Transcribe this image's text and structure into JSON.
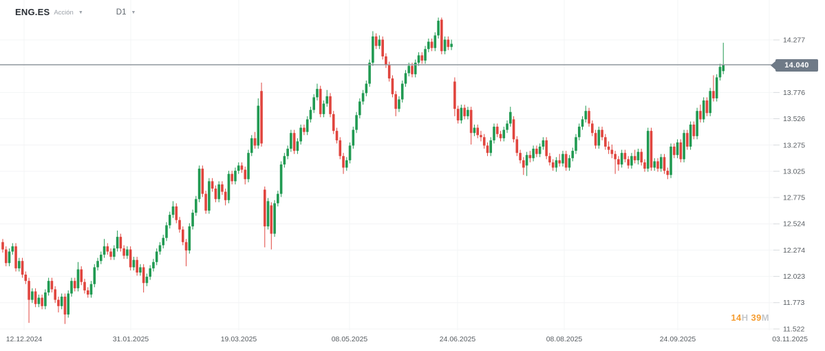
{
  "header": {
    "symbol": "ENG.ES",
    "instrument_type": "Acción",
    "timeframe": "D1"
  },
  "price_axis": {
    "current_price": "14.040",
    "labels": [
      "14.277",
      "13.776",
      "13.526",
      "13.275",
      "13.025",
      "12.775",
      "12.524",
      "12.274",
      "12.023",
      "11.773",
      "11.522"
    ]
  },
  "date_axis": {
    "ticks": [
      {
        "label": "12.12.2024",
        "x": 35
      },
      {
        "label": "31.01.2025",
        "x": 190
      },
      {
        "label": "19.03.2025",
        "x": 347
      },
      {
        "label": "08.05.2025",
        "x": 508
      },
      {
        "label": "24.06.2025",
        "x": 665
      },
      {
        "label": "08.08.2025",
        "x": 820
      },
      {
        "label": "24.09.2025",
        "x": 985
      },
      {
        "label": "03.11.2025",
        "x": 1118
      }
    ]
  },
  "countdown": {
    "hours": "14",
    "hours_unit": "H",
    "minutes": "39",
    "minutes_unit": "M"
  },
  "colors": {
    "up": "#219a52",
    "down": "#e0453e",
    "grid": "#f3f4f6",
    "grid_tick": "#d8dbde",
    "price_line": "#8f969d",
    "badge": "#6f7a87",
    "axis_text": "#585d62",
    "countdown_number": "#f59d31",
    "countdown_unit": "#c3c7cb",
    "background": "#ffffff"
  },
  "chart_data": {
    "type": "candlestick",
    "title": "ENG.ES Acción D1",
    "timeframe": "D1",
    "current_price": 14.04,
    "ylim": [
      11.522,
      14.49
    ],
    "y_axis_ticks": [
      14.277,
      13.776,
      13.526,
      13.275,
      13.025,
      12.775,
      12.524,
      12.274,
      12.023,
      11.773,
      11.522
    ],
    "x_axis_dates": [
      "12.12.2024",
      "31.01.2025",
      "19.03.2025",
      "08.05.2025",
      "24.06.2025",
      "08.08.2025",
      "24.09.2025",
      "03.11.2025"
    ],
    "grid": true,
    "legend": false,
    "candles": [
      [
        12.35,
        12.38,
        12.25,
        12.28
      ],
      [
        12.28,
        12.31,
        12.12,
        12.15
      ],
      [
        12.15,
        12.29,
        12.12,
        12.26
      ],
      [
        12.26,
        12.34,
        12.23,
        12.31
      ],
      [
        12.31,
        12.34,
        12.07,
        12.1
      ],
      [
        12.1,
        12.2,
        12.07,
        12.17
      ],
      [
        12.17,
        12.2,
        12.01,
        12.04
      ],
      [
        12.04,
        12.07,
        11.95,
        11.98
      ],
      [
        11.98,
        12.01,
        11.58,
        11.8
      ],
      [
        11.8,
        11.91,
        11.77,
        11.88
      ],
      [
        11.88,
        11.91,
        11.73,
        11.76
      ],
      [
        11.76,
        11.85,
        11.73,
        11.82
      ],
      [
        11.82,
        11.85,
        11.71,
        11.74
      ],
      [
        11.74,
        11.9,
        11.71,
        11.87
      ],
      [
        11.87,
        12.01,
        11.84,
        11.98
      ],
      [
        11.98,
        12.01,
        11.87,
        11.9
      ],
      [
        11.9,
        11.93,
        11.77,
        11.8
      ],
      [
        11.8,
        11.83,
        11.68,
        11.74
      ],
      [
        11.74,
        11.86,
        11.71,
        11.83
      ],
      [
        11.83,
        11.86,
        11.57,
        11.66
      ],
      [
        11.66,
        11.89,
        11.63,
        11.86
      ],
      [
        11.86,
        12.01,
        11.83,
        11.98
      ],
      [
        11.98,
        12.01,
        11.88,
        11.91
      ],
      [
        11.91,
        12.16,
        11.88,
        12.09
      ],
      [
        12.09,
        12.12,
        11.94,
        11.97
      ],
      [
        11.97,
        12.0,
        11.86,
        11.89
      ],
      [
        11.89,
        11.92,
        11.82,
        11.85
      ],
      [
        11.85,
        11.98,
        11.82,
        11.95
      ],
      [
        11.95,
        12.14,
        11.92,
        12.11
      ],
      [
        12.11,
        12.2,
        12.08,
        12.17
      ],
      [
        12.17,
        12.26,
        12.14,
        12.23
      ],
      [
        12.23,
        12.38,
        12.2,
        12.31
      ],
      [
        12.31,
        12.34,
        12.23,
        12.26
      ],
      [
        12.26,
        12.29,
        12.18,
        12.21
      ],
      [
        12.21,
        12.32,
        12.18,
        12.29
      ],
      [
        12.29,
        12.46,
        12.26,
        12.4
      ],
      [
        12.4,
        12.43,
        12.26,
        12.29
      ],
      [
        12.29,
        12.32,
        12.19,
        12.22
      ],
      [
        12.22,
        12.31,
        12.19,
        12.28
      ],
      [
        12.28,
        12.31,
        12.08,
        12.11
      ],
      [
        12.11,
        12.21,
        12.08,
        12.18
      ],
      [
        12.18,
        12.21,
        12.03,
        12.06
      ],
      [
        12.06,
        12.14,
        12.03,
        12.11
      ],
      [
        12.11,
        12.14,
        11.87,
        11.96
      ],
      [
        11.96,
        12.05,
        11.93,
        12.02
      ],
      [
        12.02,
        12.13,
        11.99,
        12.1
      ],
      [
        12.1,
        12.19,
        12.07,
        12.16
      ],
      [
        12.16,
        12.29,
        12.13,
        12.26
      ],
      [
        12.26,
        12.35,
        12.23,
        12.32
      ],
      [
        12.32,
        12.42,
        12.29,
        12.39
      ],
      [
        12.39,
        12.54,
        12.36,
        12.51
      ],
      [
        12.51,
        12.64,
        12.48,
        12.61
      ],
      [
        12.61,
        12.74,
        12.58,
        12.69
      ],
      [
        12.69,
        12.72,
        12.53,
        12.56
      ],
      [
        12.56,
        12.59,
        12.44,
        12.47
      ],
      [
        12.47,
        12.5,
        12.32,
        12.35
      ],
      [
        12.35,
        12.38,
        12.12,
        12.27
      ],
      [
        12.27,
        12.53,
        12.24,
        12.5
      ],
      [
        12.5,
        12.66,
        12.47,
        12.63
      ],
      [
        12.63,
        12.79,
        12.6,
        12.76
      ],
      [
        12.76,
        13.08,
        12.73,
        13.05
      ],
      [
        13.05,
        13.08,
        12.78,
        12.81
      ],
      [
        12.81,
        12.84,
        12.62,
        12.65
      ],
      [
        12.65,
        12.96,
        12.62,
        12.93
      ],
      [
        12.93,
        12.96,
        12.83,
        12.86
      ],
      [
        12.86,
        12.89,
        12.73,
        12.76
      ],
      [
        12.76,
        12.93,
        12.73,
        12.9
      ],
      [
        12.9,
        12.93,
        12.8,
        12.83
      ],
      [
        12.83,
        12.86,
        12.7,
        12.75
      ],
      [
        12.75,
        13.03,
        12.72,
        13.0
      ],
      [
        13.0,
        13.03,
        12.9,
        12.93
      ],
      [
        12.93,
        13.06,
        12.9,
        13.03
      ],
      [
        13.03,
        13.11,
        13.0,
        13.08
      ],
      [
        13.08,
        13.11,
        13.01,
        13.04
      ],
      [
        13.04,
        13.07,
        12.9,
        12.95
      ],
      [
        12.95,
        13.23,
        12.92,
        13.2
      ],
      [
        13.2,
        13.37,
        13.17,
        13.34
      ],
      [
        13.34,
        13.4,
        13.24,
        13.27
      ],
      [
        13.27,
        13.72,
        13.24,
        13.65
      ],
      [
        13.79,
        13.87,
        13.26,
        13.29
      ],
      [
        12.85,
        12.88,
        12.3,
        12.5
      ],
      [
        12.5,
        12.77,
        12.47,
        12.74
      ],
      [
        12.7,
        12.73,
        12.28,
        12.43
      ],
      [
        12.43,
        12.75,
        12.4,
        12.72
      ],
      [
        12.72,
        12.84,
        12.69,
        12.81
      ],
      [
        12.81,
        13.12,
        12.78,
        13.09
      ],
      [
        13.09,
        13.2,
        13.06,
        13.17
      ],
      [
        13.17,
        13.27,
        13.14,
        13.24
      ],
      [
        13.24,
        13.42,
        13.21,
        13.39
      ],
      [
        13.39,
        13.42,
        13.19,
        13.22
      ],
      [
        13.22,
        13.34,
        13.19,
        13.31
      ],
      [
        13.31,
        13.47,
        13.28,
        13.44
      ],
      [
        13.44,
        13.47,
        13.37,
        13.4
      ],
      [
        13.4,
        13.55,
        13.37,
        13.52
      ],
      [
        13.52,
        13.64,
        13.49,
        13.61
      ],
      [
        13.61,
        13.76,
        13.58,
        13.73
      ],
      [
        13.73,
        13.86,
        13.7,
        13.81
      ],
      [
        13.81,
        13.84,
        13.54,
        13.57
      ],
      [
        13.57,
        13.7,
        13.54,
        13.67
      ],
      [
        13.67,
        13.8,
        13.64,
        13.74
      ],
      [
        13.74,
        13.77,
        13.54,
        13.57
      ],
      [
        13.57,
        13.6,
        13.38,
        13.41
      ],
      [
        13.41,
        13.44,
        13.29,
        13.32
      ],
      [
        13.32,
        13.35,
        13.14,
        13.17
      ],
      [
        13.17,
        13.2,
        13.0,
        13.06
      ],
      [
        13.06,
        13.16,
        13.03,
        13.13
      ],
      [
        13.13,
        13.3,
        13.1,
        13.27
      ],
      [
        13.27,
        13.45,
        13.24,
        13.42
      ],
      [
        13.42,
        13.59,
        13.39,
        13.56
      ],
      [
        13.56,
        13.72,
        13.53,
        13.69
      ],
      [
        13.69,
        13.8,
        13.66,
        13.77
      ],
      [
        13.77,
        13.89,
        13.74,
        13.86
      ],
      [
        13.86,
        14.09,
        13.83,
        14.06
      ],
      [
        14.06,
        14.36,
        14.03,
        14.31
      ],
      [
        14.31,
        14.34,
        14.19,
        14.22
      ],
      [
        14.22,
        14.32,
        14.19,
        14.28
      ],
      [
        14.28,
        14.31,
        14.09,
        14.12
      ],
      [
        14.12,
        14.15,
        14.01,
        14.04
      ],
      [
        14.04,
        14.07,
        13.88,
        13.91
      ],
      [
        13.91,
        13.94,
        13.73,
        13.76
      ],
      [
        13.76,
        13.79,
        13.55,
        13.62
      ],
      [
        13.62,
        13.74,
        13.59,
        13.71
      ],
      [
        13.71,
        13.89,
        13.68,
        13.86
      ],
      [
        13.86,
        13.99,
        13.83,
        13.96
      ],
      [
        13.96,
        14.06,
        13.93,
        14.03
      ],
      [
        14.03,
        14.06,
        13.92,
        13.95
      ],
      [
        13.95,
        14.09,
        13.92,
        14.06
      ],
      [
        14.06,
        14.16,
        14.03,
        14.13
      ],
      [
        14.13,
        14.16,
        14.05,
        14.08
      ],
      [
        14.08,
        14.22,
        14.05,
        14.19
      ],
      [
        14.19,
        14.29,
        14.16,
        14.26
      ],
      [
        14.26,
        14.29,
        14.17,
        14.2
      ],
      [
        14.2,
        14.35,
        14.17,
        14.32
      ],
      [
        14.32,
        14.49,
        14.29,
        14.46
      ],
      [
        14.47,
        14.49,
        14.14,
        14.17
      ],
      [
        14.17,
        14.31,
        14.14,
        14.28
      ],
      [
        14.28,
        14.31,
        14.18,
        14.21
      ],
      [
        14.21,
        14.28,
        14.18,
        14.24
      ],
      [
        13.88,
        13.92,
        13.55,
        13.62
      ],
      [
        13.62,
        13.65,
        13.48,
        13.51
      ],
      [
        13.51,
        13.66,
        13.48,
        13.63
      ],
      [
        13.63,
        13.66,
        13.52,
        13.55
      ],
      [
        13.55,
        13.64,
        13.52,
        13.61
      ],
      [
        13.61,
        13.64,
        13.28,
        13.39
      ],
      [
        13.39,
        13.47,
        13.36,
        13.44
      ],
      [
        13.44,
        13.47,
        13.34,
        13.37
      ],
      [
        13.37,
        13.41,
        13.31,
        13.35
      ],
      [
        13.35,
        13.38,
        13.24,
        13.27
      ],
      [
        13.27,
        13.3,
        13.17,
        13.2
      ],
      [
        13.2,
        13.35,
        13.17,
        13.32
      ],
      [
        13.32,
        13.48,
        13.29,
        13.45
      ],
      [
        13.45,
        13.48,
        13.35,
        13.38
      ],
      [
        13.38,
        13.41,
        13.31,
        13.34
      ],
      [
        13.34,
        13.45,
        13.31,
        13.42
      ],
      [
        13.42,
        13.51,
        13.39,
        13.48
      ],
      [
        13.48,
        13.64,
        13.45,
        13.59
      ],
      [
        13.52,
        13.55,
        13.3,
        13.33
      ],
      [
        13.33,
        13.36,
        13.17,
        13.2
      ],
      [
        13.2,
        13.23,
        13.1,
        13.13
      ],
      [
        13.13,
        13.16,
        12.99,
        13.06
      ],
      [
        13.08,
        13.21,
        12.98,
        13.18
      ],
      [
        13.18,
        13.22,
        13.11,
        13.15
      ],
      [
        13.15,
        13.27,
        13.12,
        13.24
      ],
      [
        13.24,
        13.27,
        13.16,
        13.19
      ],
      [
        13.19,
        13.29,
        13.16,
        13.26
      ],
      [
        13.26,
        13.35,
        13.23,
        13.32
      ],
      [
        13.32,
        13.35,
        13.14,
        13.17
      ],
      [
        13.17,
        13.2,
        13.08,
        13.11
      ],
      [
        13.11,
        13.14,
        13.03,
        13.06
      ],
      [
        13.06,
        13.16,
        13.02,
        13.13
      ],
      [
        13.13,
        13.19,
        13.07,
        13.1
      ],
      [
        13.1,
        13.22,
        13.07,
        13.19
      ],
      [
        13.19,
        13.22,
        13.03,
        13.06
      ],
      [
        13.06,
        13.18,
        13.03,
        13.15
      ],
      [
        13.15,
        13.25,
        13.12,
        13.22
      ],
      [
        13.22,
        13.38,
        13.19,
        13.35
      ],
      [
        13.35,
        13.48,
        13.32,
        13.45
      ],
      [
        13.45,
        13.55,
        13.42,
        13.52
      ],
      [
        13.52,
        13.65,
        13.49,
        13.6
      ],
      [
        13.6,
        13.63,
        13.45,
        13.48
      ],
      [
        13.48,
        13.51,
        13.36,
        13.39
      ],
      [
        13.39,
        13.42,
        13.24,
        13.27
      ],
      [
        13.27,
        13.45,
        13.24,
        13.42
      ],
      [
        13.42,
        13.45,
        13.32,
        13.35
      ],
      [
        13.35,
        13.38,
        13.23,
        13.26
      ],
      [
        13.26,
        13.31,
        13.19,
        13.23
      ],
      [
        13.23,
        13.28,
        13.15,
        13.19
      ],
      [
        13.19,
        13.22,
        13.0,
        13.14
      ],
      [
        13.14,
        13.17,
        13.03,
        13.09
      ],
      [
        13.09,
        13.23,
        13.06,
        13.2
      ],
      [
        13.2,
        13.23,
        13.11,
        13.14
      ],
      [
        13.14,
        13.17,
        13.05,
        13.08
      ],
      [
        13.08,
        13.2,
        13.05,
        13.17
      ],
      [
        13.17,
        13.23,
        13.1,
        13.13
      ],
      [
        13.13,
        13.24,
        13.09,
        13.21
      ],
      [
        13.21,
        13.24,
        13.08,
        13.11
      ],
      [
        13.11,
        13.14,
        13.02,
        13.05
      ],
      [
        13.05,
        13.44,
        13.02,
        13.41
      ],
      [
        13.41,
        13.44,
        13.03,
        13.06
      ],
      [
        13.06,
        13.15,
        13.03,
        13.12
      ],
      [
        13.12,
        13.15,
        13.02,
        13.05
      ],
      [
        13.05,
        13.19,
        13.02,
        13.16
      ],
      [
        13.16,
        13.19,
        13.0,
        13.03
      ],
      [
        13.03,
        13.06,
        12.95,
        12.99
      ],
      [
        12.99,
        13.29,
        12.96,
        13.26
      ],
      [
        13.26,
        13.29,
        13.15,
        13.18
      ],
      [
        13.18,
        13.33,
        13.15,
        13.3
      ],
      [
        13.3,
        13.33,
        13.11,
        13.14
      ],
      [
        13.14,
        13.42,
        13.11,
        13.39
      ],
      [
        13.39,
        13.42,
        13.23,
        13.26
      ],
      [
        13.26,
        13.5,
        13.23,
        13.47
      ],
      [
        13.47,
        13.5,
        13.33,
        13.36
      ],
      [
        13.36,
        13.63,
        13.33,
        13.6
      ],
      [
        13.6,
        13.66,
        13.49,
        13.52
      ],
      [
        13.52,
        13.73,
        13.49,
        13.7
      ],
      [
        13.7,
        13.73,
        13.55,
        13.58
      ],
      [
        13.58,
        13.82,
        13.55,
        13.79
      ],
      [
        13.79,
        13.94,
        13.69,
        13.72
      ],
      [
        13.72,
        13.95,
        13.69,
        13.92
      ],
      [
        13.92,
        14.05,
        13.89,
        14.02
      ],
      [
        13.98,
        14.25,
        13.95,
        14.04
      ]
    ]
  }
}
